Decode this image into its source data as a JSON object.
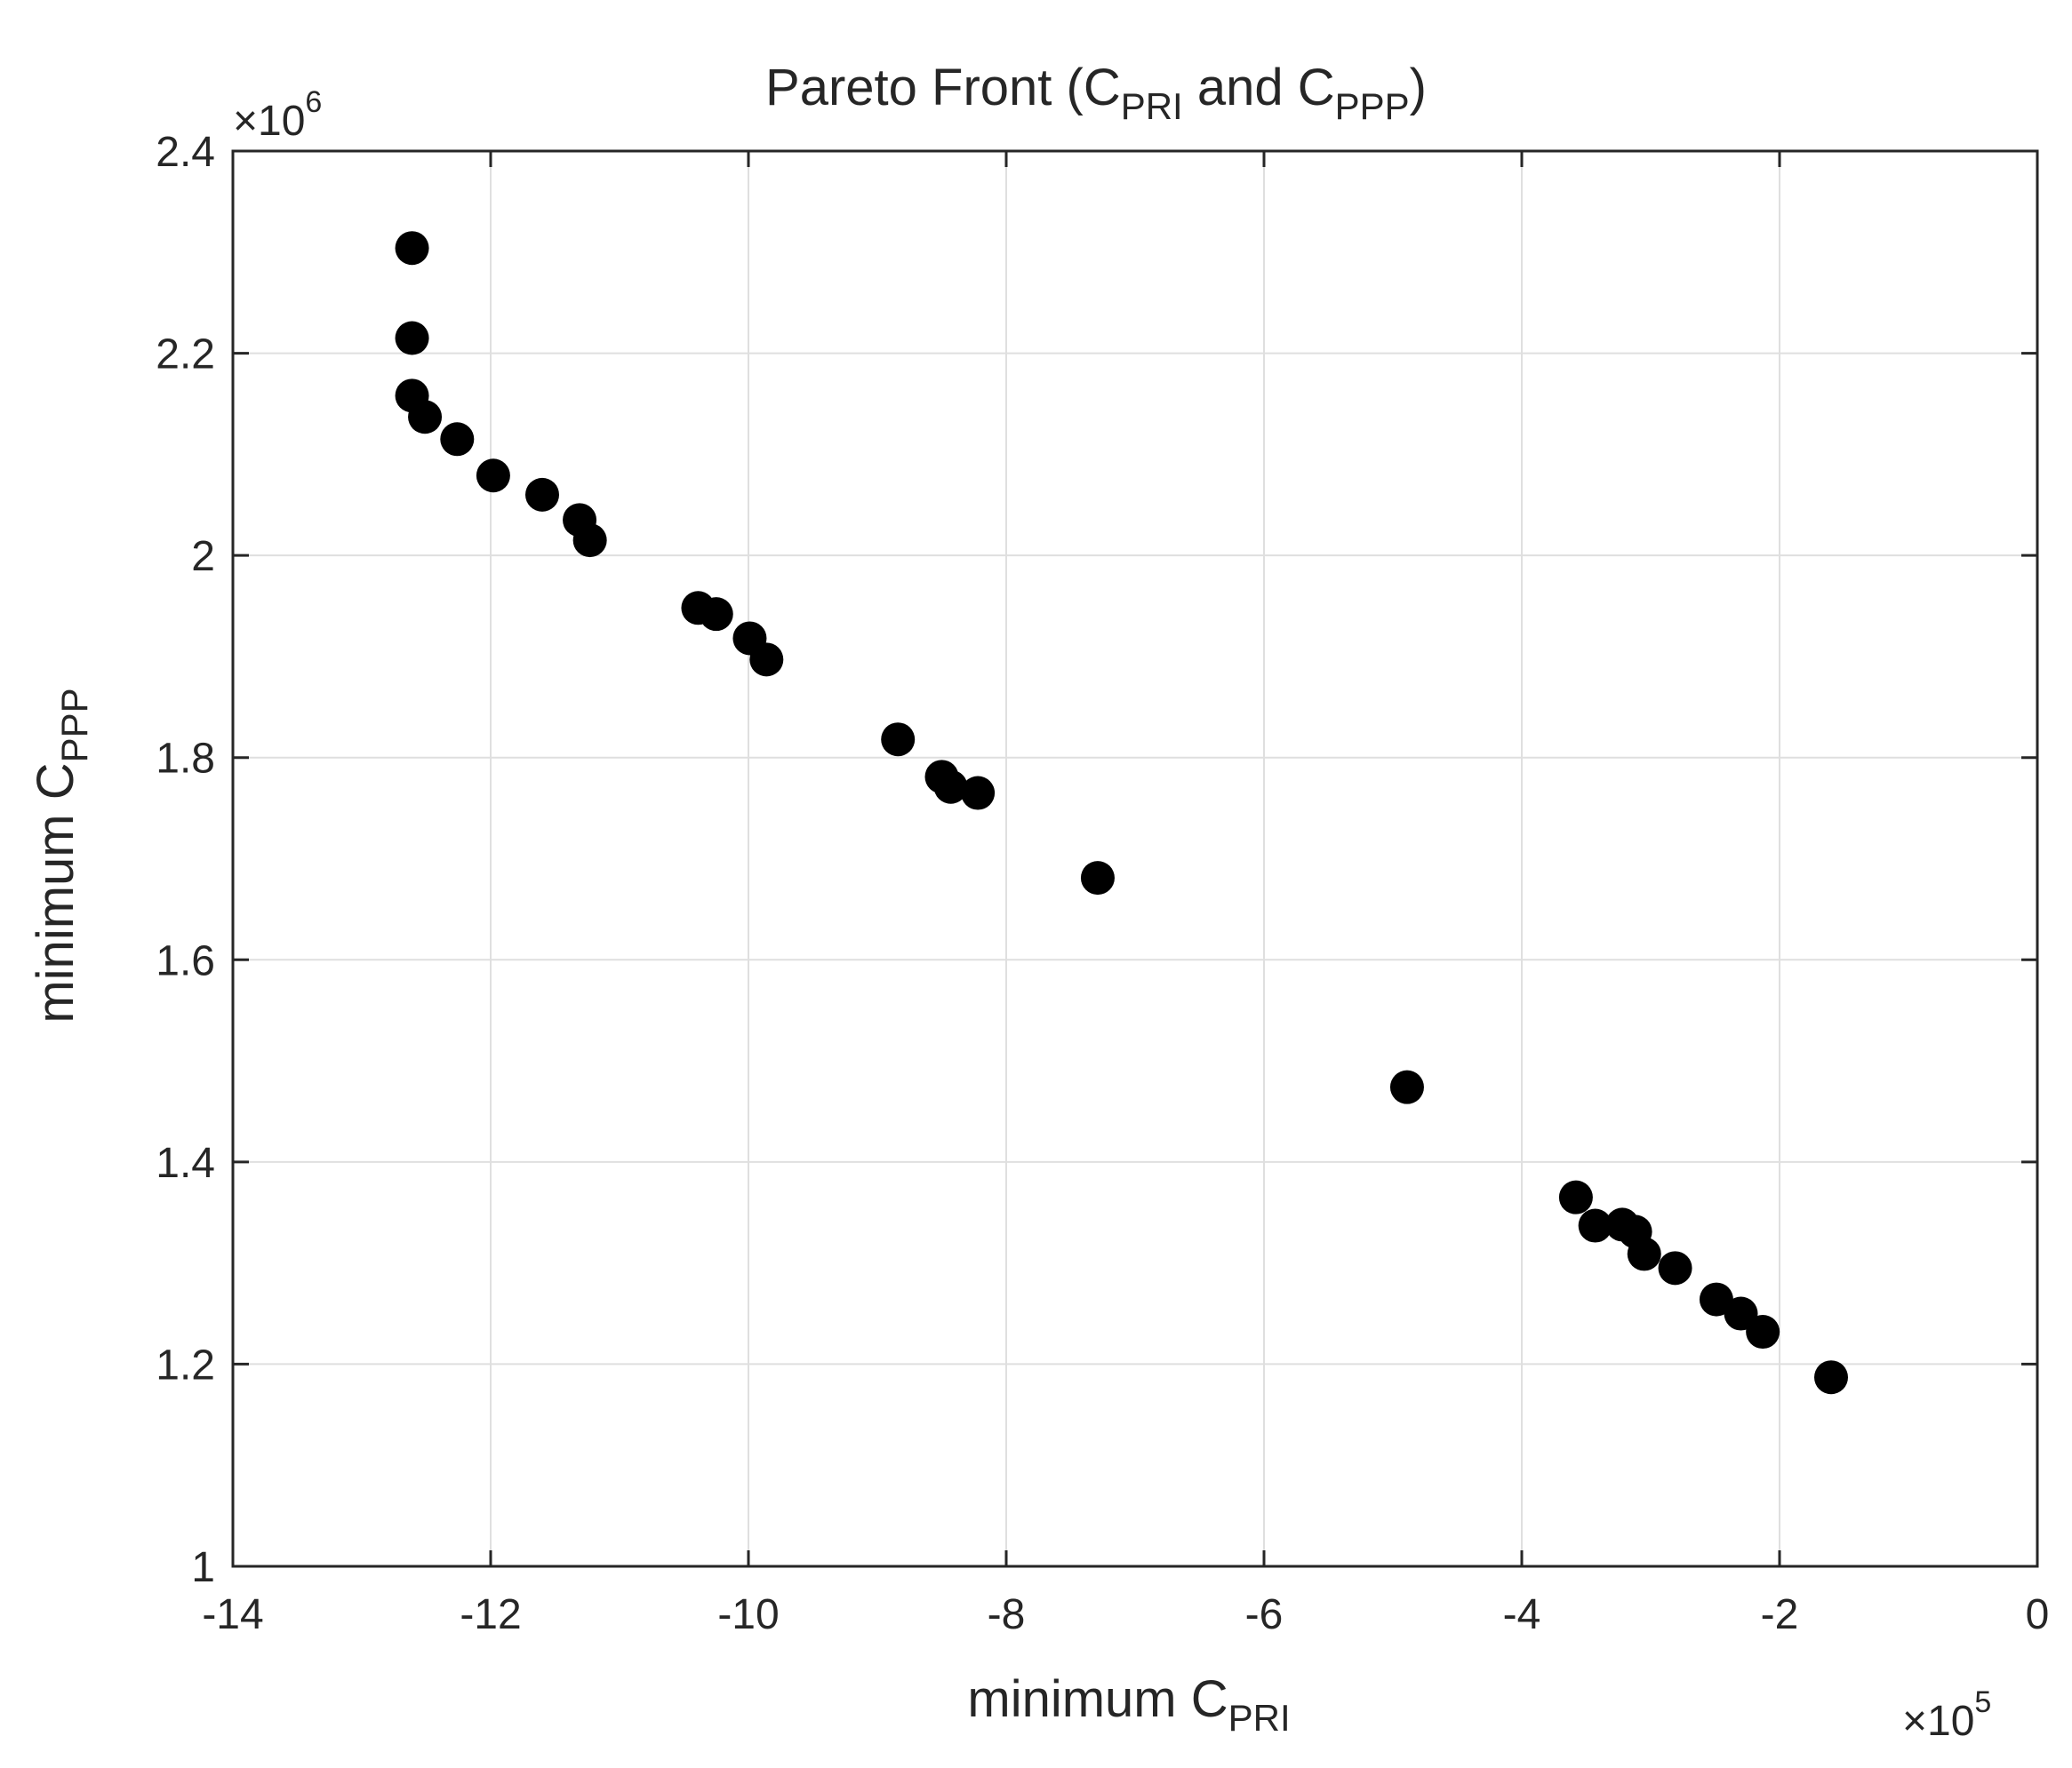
{
  "chart_data": {
    "type": "scatter",
    "title": {
      "main": "Pareto Front (C",
      "sub1": "PRI",
      "mid": " and C",
      "sub2": "PPP",
      "end": ")"
    },
    "xlabel": {
      "main": "minimum C",
      "sub": "PRI"
    },
    "ylabel": {
      "main": "minimum C",
      "sub": "PPP"
    },
    "x_exponent": {
      "prefix": "×10",
      "power": "5"
    },
    "y_exponent": {
      "prefix": "×10",
      "power": "6"
    },
    "xlim": [
      -14,
      0
    ],
    "ylim": [
      1,
      2.4
    ],
    "xticks": [
      "-14",
      "-12",
      "-10",
      "-8",
      "-6",
      "-4",
      "-2",
      "0"
    ],
    "yticks": [
      "1",
      "1.2",
      "1.4",
      "1.6",
      "1.8",
      "2",
      "2.2",
      "2.4"
    ],
    "grid": true,
    "marker_color": "#000000",
    "points": [
      {
        "x": -12.61,
        "y": 2.304
      },
      {
        "x": -12.61,
        "y": 2.215
      },
      {
        "x": -12.61,
        "y": 2.158
      },
      {
        "x": -12.51,
        "y": 2.137
      },
      {
        "x": -12.26,
        "y": 2.115
      },
      {
        "x": -11.98,
        "y": 2.079
      },
      {
        "x": -11.6,
        "y": 2.06
      },
      {
        "x": -11.31,
        "y": 2.035
      },
      {
        "x": -11.23,
        "y": 2.015
      },
      {
        "x": -10.39,
        "y": 1.948
      },
      {
        "x": -10.25,
        "y": 1.942
      },
      {
        "x": -9.99,
        "y": 1.918
      },
      {
        "x": -9.86,
        "y": 1.897
      },
      {
        "x": -8.84,
        "y": 1.818
      },
      {
        "x": -8.5,
        "y": 1.781
      },
      {
        "x": -8.43,
        "y": 1.771
      },
      {
        "x": -8.22,
        "y": 1.765
      },
      {
        "x": -7.29,
        "y": 1.681
      },
      {
        "x": -4.89,
        "y": 1.474
      },
      {
        "x": -3.58,
        "y": 1.365
      },
      {
        "x": -3.43,
        "y": 1.337
      },
      {
        "x": -3.22,
        "y": 1.338
      },
      {
        "x": -3.12,
        "y": 1.331
      },
      {
        "x": -3.05,
        "y": 1.309
      },
      {
        "x": -2.81,
        "y": 1.295
      },
      {
        "x": -2.49,
        "y": 1.264
      },
      {
        "x": -2.3,
        "y": 1.25
      },
      {
        "x": -2.13,
        "y": 1.232
      },
      {
        "x": -1.6,
        "y": 1.187
      }
    ]
  }
}
